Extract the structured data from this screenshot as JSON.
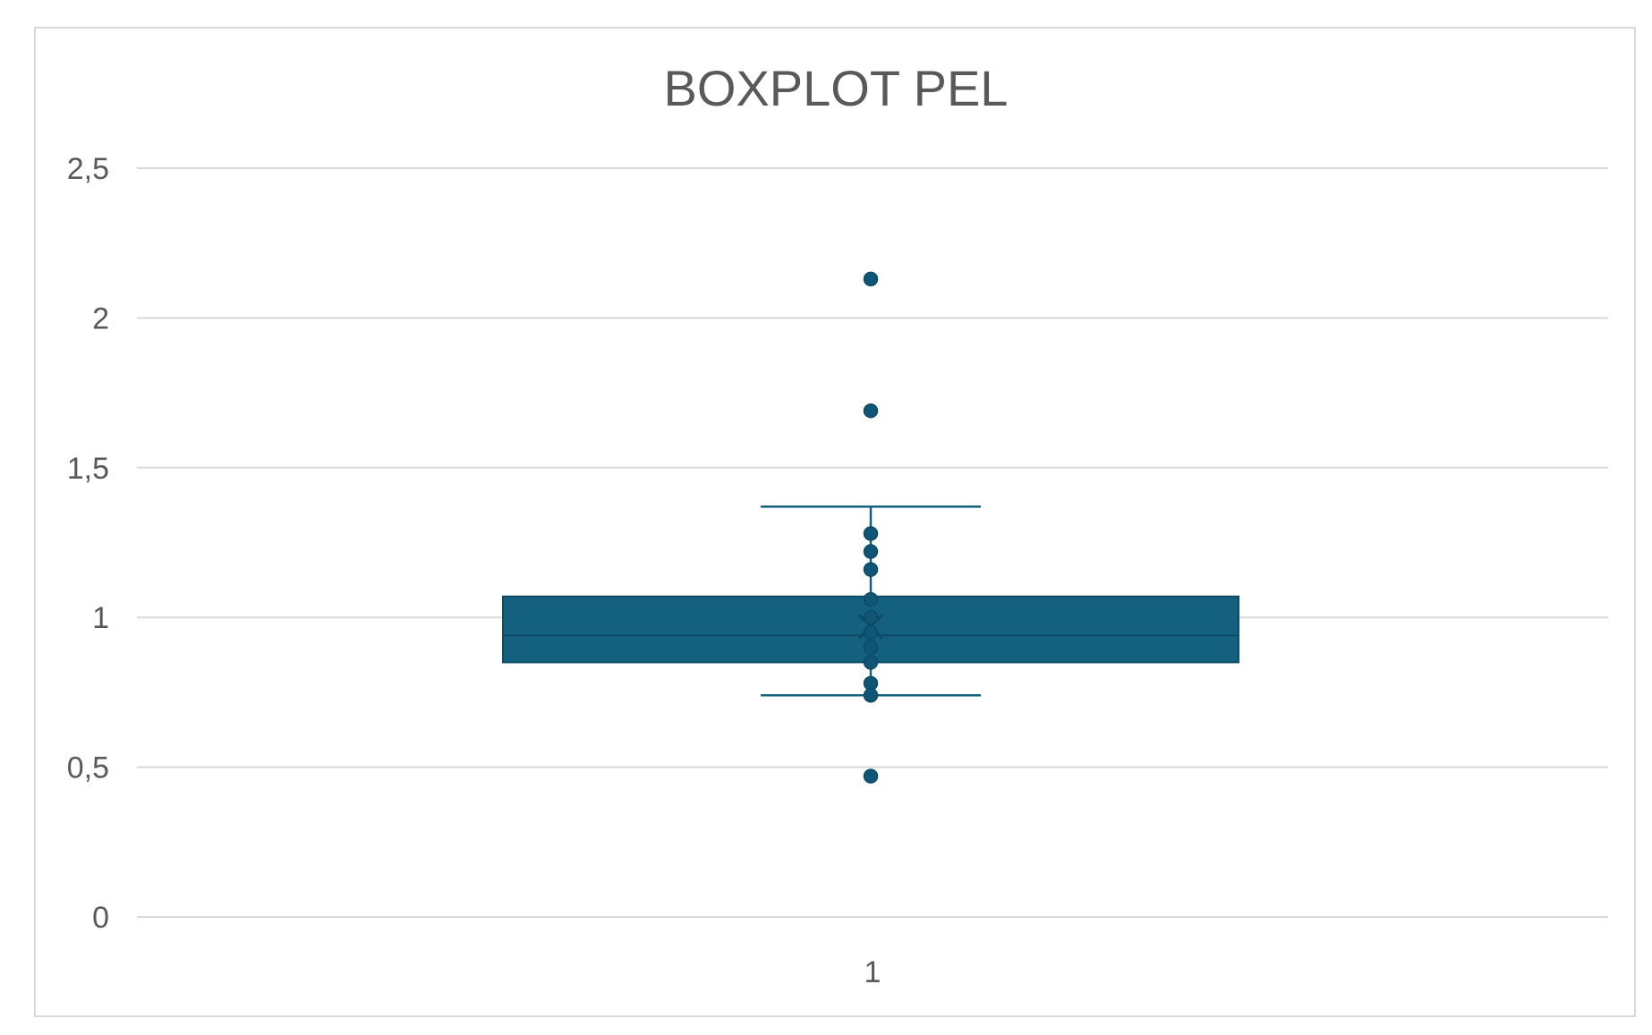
{
  "chart_data": {
    "type": "boxplot",
    "title": "BOXPLOT PEL",
    "xlabel": "",
    "ylabel": "",
    "categories": [
      "1"
    ],
    "ylim": [
      0,
      2.5
    ],
    "yticks": [
      0,
      0.5,
      1,
      1.5,
      2,
      2.5
    ],
    "ytick_labels": [
      "0",
      "0,5",
      "1",
      "1,5",
      "2",
      "2,5"
    ],
    "grid": true,
    "legend": "none",
    "color": "#14607f",
    "box": {
      "whisker_low": 0.74,
      "q1": 0.85,
      "median": 0.94,
      "mean": 0.97,
      "q3": 1.07,
      "whisker_high": 1.37
    },
    "points": [
      2.13,
      1.69,
      1.28,
      1.22,
      1.16,
      1.06,
      1.0,
      0.95,
      0.9,
      0.85,
      0.78,
      0.74,
      0.47
    ]
  }
}
